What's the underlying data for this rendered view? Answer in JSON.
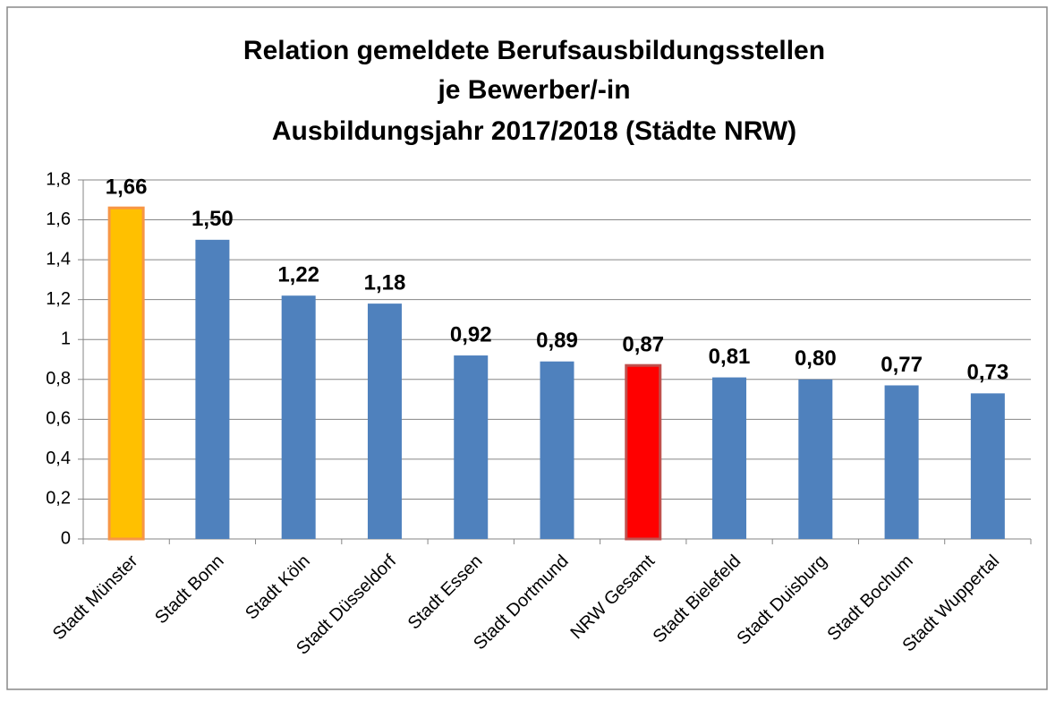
{
  "chart_data": {
    "type": "bar",
    "title": [
      "Relation gemeldete Berufsausbildungsstellen",
      "je Bewerber/-in",
      "Ausbildungsjahr 2017/2018 (Städte NRW)"
    ],
    "categories": [
      "Stadt Münster",
      "Stadt Bonn",
      "Stadt Köln",
      "Stadt Düsseldorf",
      "Stadt Essen",
      "Stadt Dortmund",
      "NRW Gesamt",
      "Stadt Bielefeld",
      "Stadt Duisburg",
      "Stadt Bochum",
      "Stadt Wuppertal"
    ],
    "values": [
      1.66,
      1.5,
      1.22,
      1.18,
      0.92,
      0.89,
      0.87,
      0.81,
      0.8,
      0.77,
      0.73
    ],
    "value_labels": [
      "1,66",
      "1,50",
      "1,22",
      "1,18",
      "0,92",
      "0,89",
      "0,87",
      "0,81",
      "0,80",
      "0,77",
      "0,73"
    ],
    "colors": [
      "#ffc000",
      "#4f81bd",
      "#4f81bd",
      "#4f81bd",
      "#4f81bd",
      "#4f81bd",
      "#ff0000",
      "#4f81bd",
      "#4f81bd",
      "#4f81bd",
      "#4f81bd"
    ],
    "edgecolors": [
      "#f79646",
      null,
      null,
      null,
      null,
      null,
      "#c0504d",
      null,
      null,
      null,
      null
    ],
    "ylim": [
      0,
      1.8
    ],
    "yticks": [
      0,
      {
        "value": 0.2,
        "label": "0,2"
      },
      {
        "value": 0.4,
        "label": "0,4"
      },
      {
        "value": 0.6,
        "label": "0,6"
      },
      {
        "value": 0.8,
        "label": "0,8"
      },
      1,
      {
        "value": 1.2,
        "label": "1,2"
      },
      {
        "value": 1.4,
        "label": "1,4"
      },
      {
        "value": 1.6,
        "label": "1,6"
      },
      {
        "value": 1.8,
        "label": "1,8"
      }
    ],
    "grid": true
  }
}
